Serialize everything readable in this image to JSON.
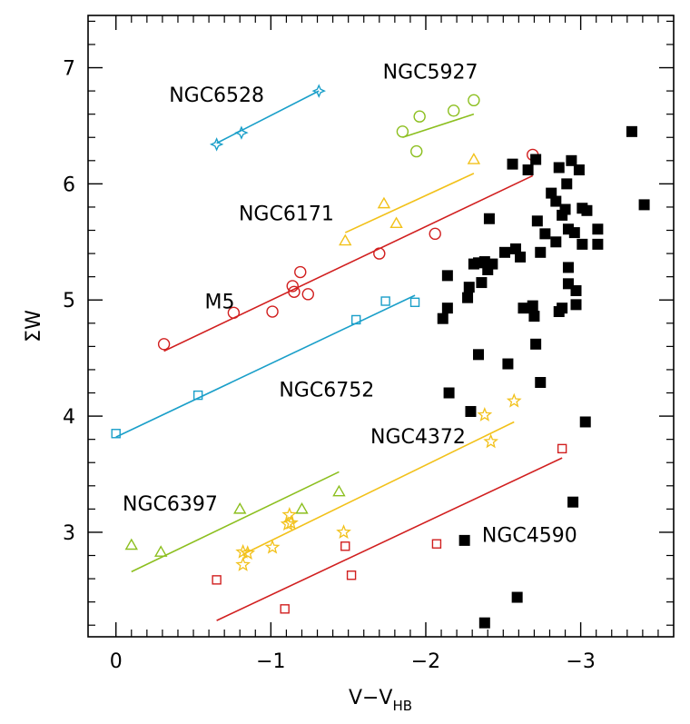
{
  "chart_data": {
    "type": "scatter",
    "xlabel": "V−V",
    "xlabel_sub": "HB",
    "ylabel": "ΣW",
    "xlim": [
      0.18,
      -3.6
    ],
    "ylim": [
      2.1,
      7.45
    ],
    "x_ticks": [
      0,
      -1,
      -2,
      -3
    ],
    "x_tick_labels": [
      "0",
      "−1",
      "−2",
      "−3"
    ],
    "y_ticks": [
      3,
      4,
      5,
      6,
      7
    ],
    "y_tick_labels": [
      "3",
      "4",
      "5",
      "6",
      "7"
    ],
    "grid": false,
    "series": [
      {
        "name": "NGC6528",
        "marker": "star4",
        "color": "#1a9fc9",
        "label_pos": [
          -0.65,
          6.77
        ],
        "points": [
          [
            -0.65,
            6.34
          ],
          [
            -0.81,
            6.44
          ],
          [
            -1.31,
            6.8
          ]
        ],
        "fit": [
          [
            -0.65,
            6.35
          ],
          [
            -1.31,
            6.8
          ]
        ]
      },
      {
        "name": "NGC5927",
        "marker": "circle",
        "color": "#8cbf1f",
        "label_pos": [
          -2.03,
          6.97
        ],
        "points": [
          [
            -1.85,
            6.45
          ],
          [
            -1.96,
            6.58
          ],
          [
            -1.94,
            6.28
          ],
          [
            -2.18,
            6.63
          ],
          [
            -2.31,
            6.72
          ]
        ],
        "fit": [
          [
            -1.85,
            6.4
          ],
          [
            -2.31,
            6.6
          ]
        ]
      },
      {
        "name": "NGC6171",
        "marker": "triangle",
        "color": "#f2c11a",
        "label_pos": [
          -1.1,
          5.75
        ],
        "points": [
          [
            -1.73,
            5.83
          ],
          [
            -1.81,
            5.66
          ],
          [
            -1.48,
            5.51
          ],
          [
            -2.31,
            6.21
          ]
        ],
        "fit": [
          [
            -1.48,
            5.58
          ],
          [
            -2.31,
            6.09
          ]
        ]
      },
      {
        "name": "M5",
        "marker": "circle",
        "color": "#d11f1f",
        "label_pos": [
          -0.67,
          4.99
        ],
        "points": [
          [
            -0.31,
            4.62
          ],
          [
            -0.76,
            4.89
          ],
          [
            -1.01,
            4.9
          ],
          [
            -1.14,
            5.12
          ],
          [
            -1.15,
            5.07
          ],
          [
            -1.19,
            5.24
          ],
          [
            -1.24,
            5.05
          ],
          [
            -1.7,
            5.4
          ],
          [
            -2.06,
            5.57
          ],
          [
            -2.69,
            6.25
          ]
        ],
        "fit": [
          [
            -0.31,
            4.56
          ],
          [
            -2.69,
            6.07
          ]
        ]
      },
      {
        "name": "NGC6752",
        "marker": "square",
        "color": "#1a9fc9",
        "label_pos": [
          -1.36,
          4.23
        ],
        "points": [
          [
            0.0,
            3.85
          ],
          [
            -0.53,
            4.18
          ],
          [
            -1.55,
            4.83
          ],
          [
            -1.74,
            4.99
          ],
          [
            -1.93,
            4.98
          ]
        ],
        "fit": [
          [
            0.0,
            3.82
          ],
          [
            -1.93,
            5.04
          ]
        ]
      },
      {
        "name": "NGC4372",
        "marker": "star5",
        "color": "#f2c11a",
        "label_pos": [
          -1.95,
          3.83
        ],
        "points": [
          [
            -0.82,
            2.83
          ],
          [
            -0.82,
            2.72
          ],
          [
            -0.85,
            2.82
          ],
          [
            -1.01,
            2.87
          ],
          [
            -1.11,
            3.07
          ],
          [
            -1.12,
            3.15
          ],
          [
            -1.13,
            3.08
          ],
          [
            -1.47,
            3.0
          ],
          [
            -2.38,
            4.01
          ],
          [
            -2.42,
            3.78
          ],
          [
            -2.57,
            4.13
          ]
        ],
        "fit": [
          [
            -0.82,
            2.81
          ],
          [
            -2.57,
            3.95
          ]
        ]
      },
      {
        "name": "NGC6397",
        "marker": "triangle",
        "color": "#8cbf1f",
        "label_pos": [
          -0.35,
          3.25
        ],
        "points": [
          [
            -0.1,
            2.89
          ],
          [
            -0.29,
            2.83
          ],
          [
            -0.8,
            3.2
          ],
          [
            -1.2,
            3.2
          ],
          [
            -1.44,
            3.35
          ]
        ],
        "fit": [
          [
            -0.1,
            2.66
          ],
          [
            -1.44,
            3.52
          ]
        ]
      },
      {
        "name": "NGC4590",
        "marker": "square",
        "color": "#d11f1f",
        "label_pos": [
          -2.67,
          2.98
        ],
        "points": [
          [
            -0.65,
            2.59
          ],
          [
            -1.09,
            2.34
          ],
          [
            -1.48,
            2.88
          ],
          [
            -1.52,
            2.63
          ],
          [
            -2.07,
            2.9
          ],
          [
            -2.88,
            3.72
          ]
        ],
        "fit": [
          [
            -0.65,
            2.24
          ],
          [
            -2.88,
            3.64
          ]
        ]
      },
      {
        "marker": "filled-square",
        "color": "#000000",
        "points": [
          [
            -2.11,
            4.84
          ],
          [
            -2.14,
            5.21
          ],
          [
            -2.14,
            4.93
          ],
          [
            -2.15,
            4.2
          ],
          [
            -2.25,
            2.93
          ],
          [
            -2.27,
            5.02
          ],
          [
            -2.28,
            5.11
          ],
          [
            -2.29,
            4.04
          ],
          [
            -2.31,
            5.31
          ],
          [
            -2.34,
            5.32
          ],
          [
            -2.34,
            4.53
          ],
          [
            -2.36,
            5.15
          ],
          [
            -2.38,
            5.33
          ],
          [
            -2.38,
            2.22
          ],
          [
            -2.4,
            5.26
          ],
          [
            -2.41,
            5.7
          ],
          [
            -2.43,
            5.31
          ],
          [
            -2.51,
            5.41
          ],
          [
            -2.53,
            4.45
          ],
          [
            -2.56,
            6.17
          ],
          [
            -2.58,
            5.44
          ],
          [
            -2.59,
            2.44
          ],
          [
            -2.61,
            5.37
          ],
          [
            -2.63,
            4.93
          ],
          [
            -2.66,
            6.12
          ],
          [
            -2.69,
            4.95
          ],
          [
            -2.7,
            4.86
          ],
          [
            -2.71,
            6.21
          ],
          [
            -2.71,
            4.62
          ],
          [
            -2.72,
            5.68
          ],
          [
            -2.74,
            5.41
          ],
          [
            -2.74,
            4.29
          ],
          [
            -2.77,
            5.57
          ],
          [
            -2.81,
            5.92
          ],
          [
            -2.84,
            5.5
          ],
          [
            -2.84,
            5.85
          ],
          [
            -2.86,
            6.14
          ],
          [
            -2.86,
            4.9
          ],
          [
            -2.88,
            4.93
          ],
          [
            -2.88,
            5.73
          ],
          [
            -2.9,
            5.78
          ],
          [
            -2.91,
            6.0
          ],
          [
            -2.92,
            5.28
          ],
          [
            -2.92,
            5.61
          ],
          [
            -2.92,
            5.14
          ],
          [
            -2.94,
            6.2
          ],
          [
            -2.95,
            3.26
          ],
          [
            -2.96,
            5.58
          ],
          [
            -2.97,
            5.08
          ],
          [
            -2.97,
            4.96
          ],
          [
            -2.99,
            6.12
          ],
          [
            -3.01,
            5.48
          ],
          [
            -3.01,
            5.79
          ],
          [
            -3.03,
            3.95
          ],
          [
            -3.04,
            5.77
          ],
          [
            -3.11,
            5.61
          ],
          [
            -3.11,
            5.48
          ],
          [
            -3.33,
            6.45
          ],
          [
            -3.41,
            5.82
          ]
        ]
      }
    ]
  }
}
